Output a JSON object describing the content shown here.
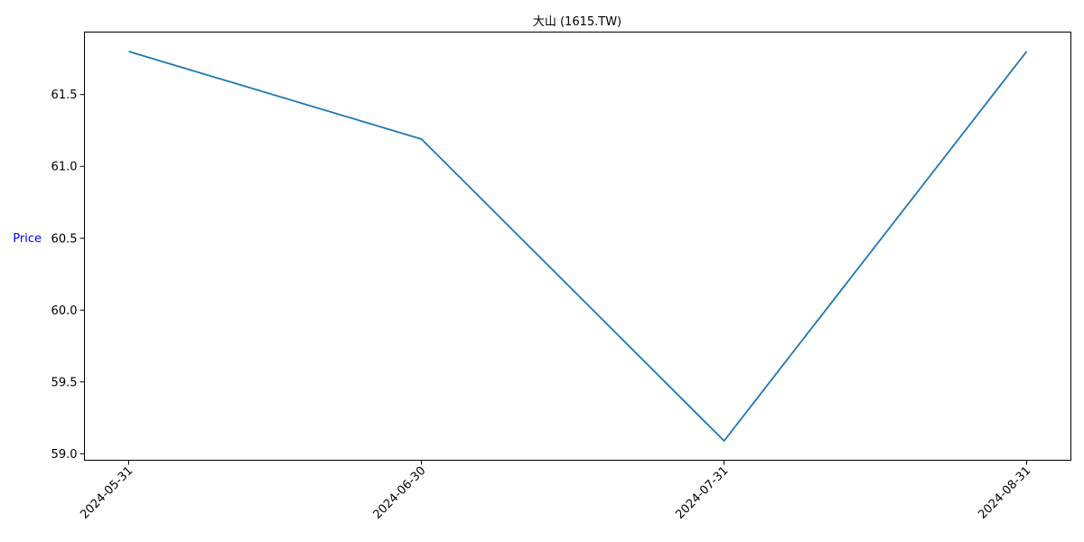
{
  "chart_data": {
    "type": "line",
    "title": "大山 (1615.TW)",
    "xlabel": "",
    "ylabel": "Price",
    "x": [
      "2024-05-31",
      "2024-06-30",
      "2024-07-31",
      "2024-08-31"
    ],
    "series": [
      {
        "values": [
          61.8,
          61.19,
          59.09,
          61.8
        ],
        "color": "#1f77b4"
      }
    ],
    "y_ticks": [
      "59.0",
      "59.5",
      "60.0",
      "60.5",
      "61.0",
      "61.5"
    ],
    "ylim": [
      58.955,
      61.935
    ],
    "grid": false,
    "legend": "none",
    "ylabel_color": "#0000ff"
  }
}
